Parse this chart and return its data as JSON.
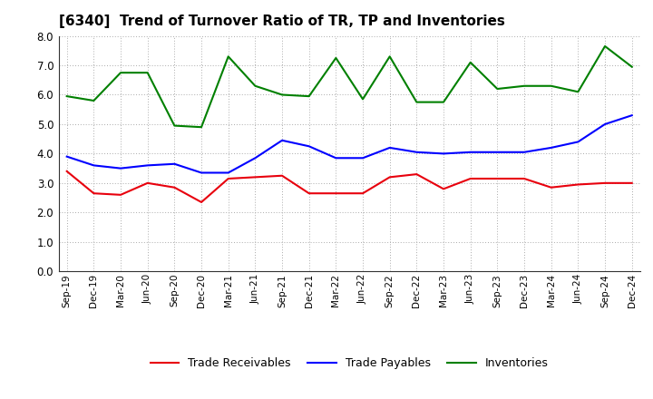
{
  "title": "[6340]  Trend of Turnover Ratio of TR, TP and Inventories",
  "x_labels": [
    "Sep-19",
    "Dec-19",
    "Mar-20",
    "Jun-20",
    "Sep-20",
    "Dec-20",
    "Mar-21",
    "Jun-21",
    "Sep-21",
    "Dec-21",
    "Mar-22",
    "Jun-22",
    "Sep-22",
    "Dec-22",
    "Mar-23",
    "Jun-23",
    "Sep-23",
    "Dec-23",
    "Mar-24",
    "Jun-24",
    "Sep-24",
    "Dec-24"
  ],
  "trade_receivables": [
    3.4,
    2.65,
    2.6,
    3.0,
    2.85,
    2.35,
    3.15,
    3.2,
    3.25,
    2.65,
    2.65,
    2.65,
    3.2,
    3.3,
    2.8,
    3.15,
    3.15,
    3.15,
    2.85,
    2.95,
    3.0,
    3.0
  ],
  "trade_payables": [
    3.9,
    3.6,
    3.5,
    3.6,
    3.65,
    3.35,
    3.35,
    3.85,
    4.45,
    4.25,
    3.85,
    3.85,
    4.2,
    4.05,
    4.0,
    4.05,
    4.05,
    4.05,
    4.2,
    4.4,
    5.0,
    5.3
  ],
  "inventories": [
    5.95,
    5.8,
    6.75,
    6.75,
    4.95,
    4.9,
    7.3,
    6.3,
    6.0,
    5.95,
    7.25,
    5.85,
    7.3,
    5.75,
    5.75,
    7.1,
    6.2,
    6.3,
    6.3,
    6.1,
    7.65,
    6.95
  ],
  "color_tr": "#e8000d",
  "color_tp": "#0000ff",
  "color_inv": "#008000",
  "ylim": [
    0.0,
    8.0
  ],
  "yticks": [
    0.0,
    1.0,
    2.0,
    3.0,
    4.0,
    5.0,
    6.0,
    7.0,
    8.0
  ],
  "legend_labels": [
    "Trade Receivables",
    "Trade Payables",
    "Inventories"
  ],
  "background_color": "#ffffff",
  "grid_color": "#aaaaaa"
}
